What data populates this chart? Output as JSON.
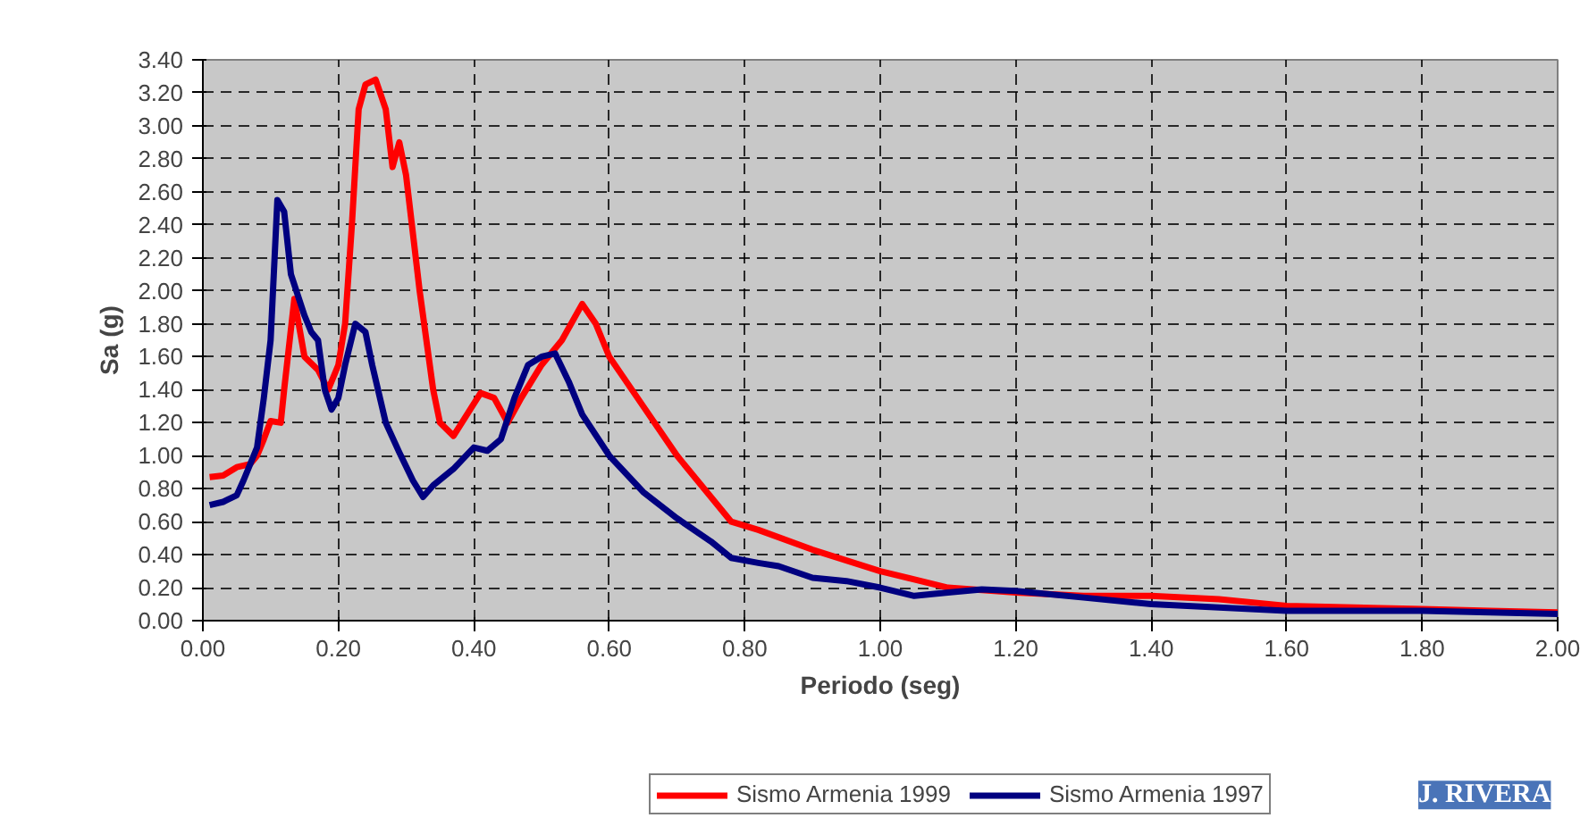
{
  "chart_data": {
    "type": "line",
    "xlabel": "Periodo (seg)",
    "ylabel": "Sa (g)",
    "xlim": [
      0,
      2
    ],
    "ylim": [
      0,
      3.4
    ],
    "xticks": [
      {
        "value": 0,
        "label": "0.00"
      },
      {
        "value": 0.2,
        "label": "0.20"
      },
      {
        "value": 0.4,
        "label": "0.40"
      },
      {
        "value": 0.6,
        "label": "0.60"
      },
      {
        "value": 0.8,
        "label": "0.80"
      },
      {
        "value": 1.0,
        "label": "1.00"
      },
      {
        "value": 1.2,
        "label": "1.20"
      },
      {
        "value": 1.4,
        "label": "1.40"
      },
      {
        "value": 1.6,
        "label": "1.60"
      },
      {
        "value": 1.8,
        "label": "1.80"
      },
      {
        "value": 2.0,
        "label": "2.00"
      }
    ],
    "yticks": [
      {
        "value": 0,
        "label": "0.00"
      },
      {
        "value": 0.2,
        "label": "0.20"
      },
      {
        "value": 0.4,
        "label": "0.40"
      },
      {
        "value": 0.6,
        "label": "0.60"
      },
      {
        "value": 0.8,
        "label": "0.80"
      },
      {
        "value": 1.0,
        "label": "1.00"
      },
      {
        "value": 1.2,
        "label": "1.20"
      },
      {
        "value": 1.4,
        "label": "1.40"
      },
      {
        "value": 1.6,
        "label": "1.60"
      },
      {
        "value": 1.8,
        "label": "1.80"
      },
      {
        "value": 2.0,
        "label": "2.00"
      },
      {
        "value": 2.2,
        "label": "2.20"
      },
      {
        "value": 2.4,
        "label": "2.40"
      },
      {
        "value": 2.6,
        "label": "2.60"
      },
      {
        "value": 2.8,
        "label": "2.80"
      },
      {
        "value": 3.0,
        "label": "3.00"
      },
      {
        "value": 3.2,
        "label": "3.20"
      },
      {
        "value": 3.4,
        "label": "3.40"
      }
    ],
    "grid": true,
    "legend": "bottom",
    "line_style": "solid",
    "marker": "none",
    "annotations": [
      "J. RIVERA"
    ],
    "series": [
      {
        "name": "Sismo Armenia 1999",
        "color": "#ff0000",
        "x": [
          0.01,
          0.03,
          0.05,
          0.07,
          0.08,
          0.09,
          0.1,
          0.115,
          0.12,
          0.135,
          0.15,
          0.17,
          0.185,
          0.2,
          0.21,
          0.22,
          0.23,
          0.24,
          0.255,
          0.27,
          0.28,
          0.29,
          0.3,
          0.32,
          0.34,
          0.35,
          0.37,
          0.39,
          0.41,
          0.43,
          0.45,
          0.47,
          0.5,
          0.53,
          0.56,
          0.58,
          0.6,
          0.62,
          0.65,
          0.7,
          0.75,
          0.78,
          0.82,
          0.9,
          1.0,
          1.1,
          1.2,
          1.3,
          1.4,
          1.5,
          1.6,
          1.7,
          1.8,
          1.9,
          2.0
        ],
        "values": [
          0.87,
          0.88,
          0.93,
          0.95,
          1.0,
          1.1,
          1.21,
          1.2,
          1.4,
          1.95,
          1.6,
          1.52,
          1.4,
          1.55,
          1.8,
          2.4,
          3.1,
          3.25,
          3.28,
          3.1,
          2.75,
          2.9,
          2.7,
          2.0,
          1.4,
          1.2,
          1.12,
          1.25,
          1.38,
          1.35,
          1.2,
          1.35,
          1.55,
          1.7,
          1.92,
          1.8,
          1.6,
          1.48,
          1.3,
          1.0,
          0.75,
          0.6,
          0.55,
          0.43,
          0.3,
          0.2,
          0.17,
          0.15,
          0.15,
          0.13,
          0.09,
          0.08,
          0.07,
          0.06,
          0.05
        ]
      },
      {
        "name": "Sismo Armenia 1997",
        "color": "#000080",
        "x": [
          0.01,
          0.03,
          0.05,
          0.06,
          0.08,
          0.09,
          0.1,
          0.11,
          0.12,
          0.13,
          0.15,
          0.16,
          0.17,
          0.18,
          0.19,
          0.2,
          0.21,
          0.225,
          0.24,
          0.25,
          0.27,
          0.29,
          0.31,
          0.325,
          0.34,
          0.37,
          0.4,
          0.42,
          0.44,
          0.46,
          0.48,
          0.5,
          0.52,
          0.54,
          0.56,
          0.6,
          0.65,
          0.7,
          0.75,
          0.78,
          0.82,
          0.85,
          0.9,
          0.95,
          1.0,
          1.05,
          1.1,
          1.15,
          1.2,
          1.3,
          1.4,
          1.5,
          1.6,
          1.7,
          1.8,
          1.9,
          2.0
        ],
        "values": [
          0.7,
          0.72,
          0.76,
          0.85,
          1.05,
          1.35,
          1.7,
          2.55,
          2.48,
          2.1,
          1.85,
          1.75,
          1.7,
          1.4,
          1.28,
          1.35,
          1.55,
          1.8,
          1.75,
          1.55,
          1.2,
          1.02,
          0.85,
          0.75,
          0.82,
          0.92,
          1.05,
          1.03,
          1.1,
          1.35,
          1.55,
          1.6,
          1.62,
          1.45,
          1.25,
          1.0,
          0.78,
          0.62,
          0.48,
          0.38,
          0.35,
          0.33,
          0.26,
          0.24,
          0.2,
          0.15,
          0.17,
          0.19,
          0.18,
          0.14,
          0.1,
          0.08,
          0.06,
          0.06,
          0.06,
          0.05,
          0.04
        ]
      }
    ]
  }
}
